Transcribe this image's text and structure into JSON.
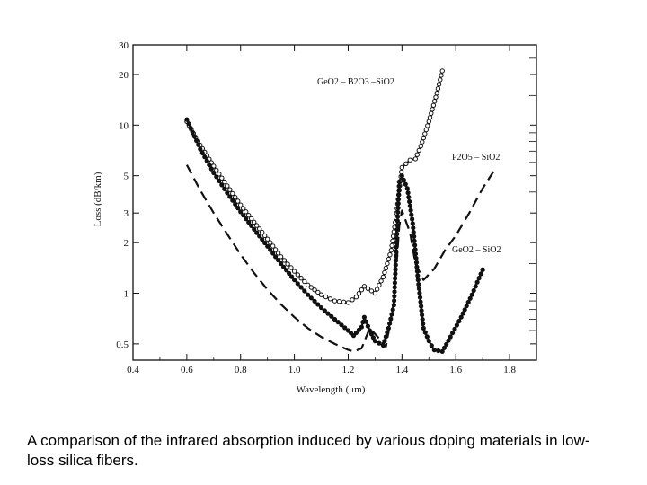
{
  "chart_data": {
    "type": "line",
    "title": "",
    "xlabel": "Wavelength (μm)",
    "ylabel": "Loss (dB/km)",
    "xlim": [
      0.4,
      1.9
    ],
    "ylim": [
      0.4,
      30
    ],
    "yscale": "log",
    "x_ticks": [
      0.4,
      0.6,
      0.8,
      1.0,
      1.2,
      1.4,
      1.6,
      1.8
    ],
    "x_tick_labels": [
      "0.4",
      "0.6",
      "0.8",
      "1.0",
      "1.2",
      "1.4",
      "1.6",
      "1.8"
    ],
    "y_ticks": [
      0.5,
      1,
      2,
      3,
      5,
      10,
      20,
      30
    ],
    "y_tick_labels": [
      "0.5",
      "1",
      "2",
      "3",
      "5",
      "10",
      "20",
      "30"
    ],
    "series": [
      {
        "name": "GeO2 – B2O3 –SiO2",
        "style": "solid-open-circles",
        "x": [
          0.6,
          0.65,
          0.7,
          0.75,
          0.8,
          0.85,
          0.9,
          0.95,
          1.0,
          1.05,
          1.1,
          1.15,
          1.2,
          1.23,
          1.26,
          1.3,
          1.33,
          1.36,
          1.38,
          1.4,
          1.43,
          1.45,
          1.47,
          1.5,
          1.53,
          1.55
        ],
        "y": [
          10.5,
          7.6,
          5.7,
          4.35,
          3.35,
          2.65,
          2.1,
          1.65,
          1.35,
          1.12,
          0.98,
          0.9,
          0.88,
          0.95,
          1.1,
          1.0,
          1.25,
          1.8,
          3.0,
          5.6,
          6.2,
          6.3,
          7.5,
          10.5,
          15.5,
          21.0
        ]
      },
      {
        "name": "P2O5 – SiO2",
        "style": "dashed",
        "x": [
          0.6,
          0.65,
          0.7,
          0.75,
          0.8,
          0.85,
          0.9,
          0.95,
          1.0,
          1.05,
          1.1,
          1.15,
          1.2,
          1.22,
          1.25,
          1.28,
          1.31,
          1.34,
          1.37,
          1.39,
          1.4,
          1.43,
          1.45,
          1.48,
          1.52,
          1.56,
          1.6,
          1.65,
          1.7,
          1.75
        ],
        "y": [
          5.8,
          4.1,
          3.0,
          2.25,
          1.7,
          1.32,
          1.05,
          0.86,
          0.72,
          0.62,
          0.55,
          0.5,
          0.46,
          0.45,
          0.47,
          0.62,
          0.55,
          0.48,
          0.9,
          2.5,
          3.1,
          2.3,
          1.5,
          1.2,
          1.4,
          1.8,
          2.2,
          3.0,
          4.2,
          5.6
        ]
      },
      {
        "name": "GeO2 – SiO2",
        "style": "solid-filled-dots",
        "x": [
          0.6,
          0.65,
          0.7,
          0.75,
          0.8,
          0.85,
          0.9,
          0.95,
          1.0,
          1.05,
          1.1,
          1.15,
          1.2,
          1.22,
          1.25,
          1.26,
          1.28,
          1.3,
          1.33,
          1.35,
          1.37,
          1.38,
          1.39,
          1.4,
          1.42,
          1.44,
          1.46,
          1.48,
          1.5,
          1.52,
          1.55,
          1.58,
          1.62,
          1.66,
          1.7
        ],
        "y": [
          10.8,
          7.2,
          5.2,
          3.95,
          3.05,
          2.4,
          1.9,
          1.5,
          1.2,
          0.98,
          0.82,
          0.7,
          0.6,
          0.56,
          0.63,
          0.72,
          0.6,
          0.52,
          0.49,
          0.62,
          0.85,
          2.0,
          4.6,
          5.0,
          4.2,
          2.6,
          1.2,
          0.62,
          0.52,
          0.46,
          0.45,
          0.55,
          0.72,
          0.98,
          1.38
        ]
      }
    ]
  },
  "caption": "A comparison of the infrared absorption induced by various doping materials in low-loss silica fibers."
}
